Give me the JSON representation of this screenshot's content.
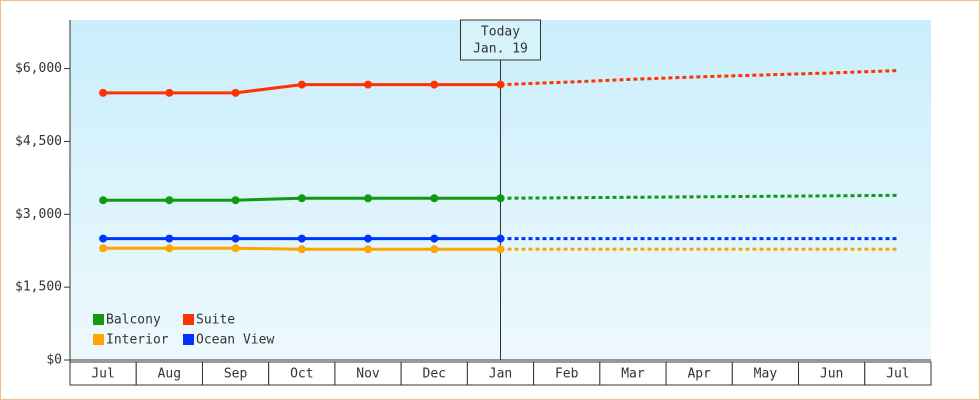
{
  "chart_data": {
    "type": "line",
    "categories": [
      "Jul",
      "Aug",
      "Sep",
      "Oct",
      "Nov",
      "Dec",
      "Jan",
      "Feb",
      "Mar",
      "Apr",
      "May",
      "Jun",
      "Jul"
    ],
    "series": [
      {
        "name": "Balcony",
        "color": "#119911",
        "values": [
          3290,
          3290,
          3290,
          3330,
          3330,
          3330,
          3330,
          3340,
          3350,
          3360,
          3370,
          3380,
          3390
        ]
      },
      {
        "name": "Suite",
        "color": "#ff3300",
        "values": [
          5500,
          5500,
          5500,
          5670,
          5670,
          5670,
          5670,
          5720,
          5780,
          5830,
          5870,
          5910,
          5960
        ]
      },
      {
        "name": "Interior",
        "color": "#ffa500",
        "values": [
          2300,
          2300,
          2300,
          2280,
          2280,
          2280,
          2280,
          2280,
          2280,
          2280,
          2280,
          2280,
          2280
        ]
      },
      {
        "name": "Ocean View",
        "color": "#0033ff",
        "values": [
          2500,
          2500,
          2500,
          2500,
          2500,
          2500,
          2500,
          2500,
          2500,
          2500,
          2500,
          2500,
          2500
        ]
      }
    ],
    "today": {
      "label": "Today",
      "date": "Jan. 19",
      "index": 6
    },
    "ylim": [
      0,
      7000
    ],
    "yticks": [
      {
        "value": 0,
        "label": "$0"
      },
      {
        "value": 1500,
        "label": "$1,500"
      },
      {
        "value": 3000,
        "label": "$3,000"
      },
      {
        "value": 4500,
        "label": "$4,500"
      },
      {
        "value": 6000,
        "label": "$6,000"
      }
    ],
    "legend": "lower left"
  }
}
